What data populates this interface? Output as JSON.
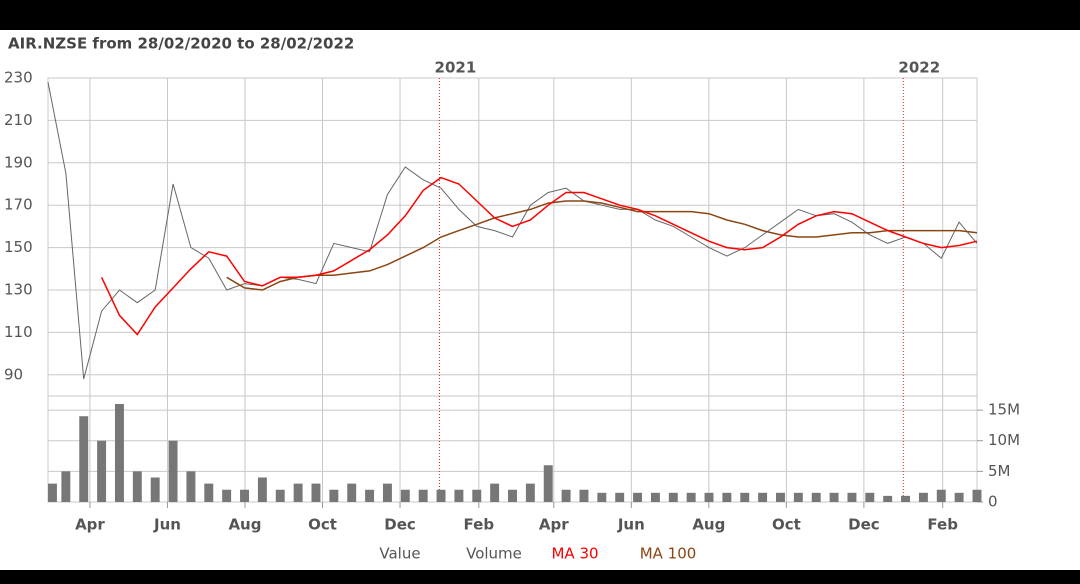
{
  "chart_data": {
    "type": "stock",
    "title": "AIR.NZSE from 28/02/2020 to 28/02/2022",
    "xlim": [
      "2020-02-28",
      "2022-02-28"
    ],
    "xticks": [
      {
        "value": "2020-04",
        "label": "Apr"
      },
      {
        "value": "2020-06",
        "label": "Jun"
      },
      {
        "value": "2020-08",
        "label": "Aug"
      },
      {
        "value": "2020-10",
        "label": "Oct"
      },
      {
        "value": "2020-12",
        "label": "Dec"
      },
      {
        "value": "2021-02",
        "label": "Feb"
      },
      {
        "value": "2021-04",
        "label": "Apr"
      },
      {
        "value": "2021-06",
        "label": "Jun"
      },
      {
        "value": "2021-08",
        "label": "Aug"
      },
      {
        "value": "2021-10",
        "label": "Oct"
      },
      {
        "value": "2021-12",
        "label": "Dec"
      },
      {
        "value": "2022-02",
        "label": "Feb"
      }
    ],
    "year_markers": [
      {
        "value": "2021-01",
        "label": "2021"
      },
      {
        "value": "2022-01",
        "label": "2022"
      }
    ],
    "ylim": [
      80,
      230
    ],
    "yticks": [
      90,
      110,
      130,
      150,
      170,
      190,
      210,
      230
    ],
    "y2lim": [
      0,
      17300000
    ],
    "y2ticks": [
      {
        "value": 0,
        "label": "0"
      },
      {
        "value": 5000000,
        "label": "5M"
      },
      {
        "value": 10000000,
        "label": "10M"
      },
      {
        "value": 15000000,
        "label": "15M"
      }
    ],
    "grid": true,
    "series": [
      {
        "name": "Value",
        "type": "line",
        "color": "#666666",
        "values": [
          228,
          185,
          88,
          120,
          130,
          124,
          130,
          180,
          150,
          145,
          130,
          133,
          132,
          136,
          135,
          133,
          152,
          150,
          148,
          175,
          188,
          182,
          178,
          168,
          160,
          158,
          155,
          170,
          176,
          178,
          172,
          170,
          168,
          168,
          163,
          160,
          155,
          150,
          146,
          150,
          156,
          162,
          168,
          165,
          166,
          162,
          156,
          152,
          155,
          152,
          145,
          162,
          152
        ]
      },
      {
        "name": "Volume",
        "type": "bar",
        "axis": "y2",
        "color": "#777777",
        "values": [
          3000000,
          5000000,
          14000000,
          10000000,
          16000000,
          5000000,
          4000000,
          10000000,
          5000000,
          3000000,
          2000000,
          2000000,
          4000000,
          2000000,
          3000000,
          3000000,
          2000000,
          3000000,
          2000000,
          3000000,
          2000000,
          2000000,
          2000000,
          2000000,
          2000000,
          3000000,
          2000000,
          3000000,
          6000000,
          2000000,
          2000000,
          1500000,
          1500000,
          1500000,
          1500000,
          1500000,
          1500000,
          1500000,
          1500000,
          1500000,
          1500000,
          1500000,
          1500000,
          1500000,
          1500000,
          1500000,
          1500000,
          1000000,
          1000000,
          1500000,
          2000000,
          1500000,
          2000000
        ]
      },
      {
        "name": "MA 30",
        "type": "line",
        "color": "#ff0000",
        "values": [
          null,
          null,
          null,
          136,
          118,
          109,
          122,
          131,
          140,
          148,
          146,
          134,
          132,
          136,
          136,
          137,
          139,
          144,
          149,
          156,
          165,
          177,
          183,
          180,
          172,
          164,
          160,
          163,
          170,
          176,
          176,
          173,
          170,
          168,
          165,
          161,
          157,
          153,
          150,
          149,
          150,
          155,
          161,
          165,
          167,
          166,
          162,
          158,
          155,
          152,
          150,
          151,
          153
        ]
      },
      {
        "name": "MA 100",
        "type": "line",
        "color": "#8b4513",
        "values": [
          null,
          null,
          null,
          null,
          null,
          null,
          null,
          null,
          null,
          null,
          136,
          131,
          130,
          134,
          136,
          137,
          137,
          138,
          139,
          142,
          146,
          150,
          155,
          158,
          161,
          164,
          166,
          168,
          171,
          172,
          172,
          171,
          169,
          167,
          167,
          167,
          167,
          166,
          163,
          161,
          158,
          156,
          155,
          155,
          156,
          157,
          157,
          158,
          158,
          158,
          158,
          158,
          157
        ]
      }
    ]
  }
}
